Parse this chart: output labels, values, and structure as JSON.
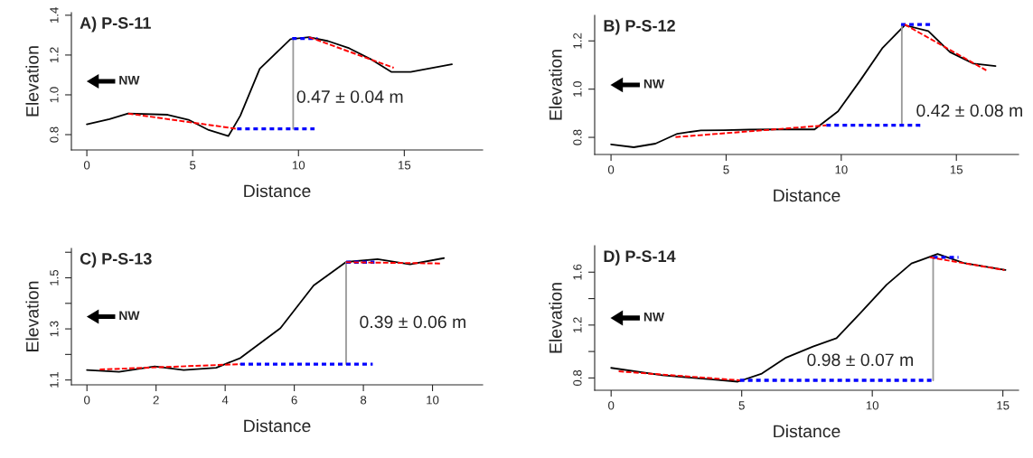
{
  "chart_data": [
    {
      "type": "line",
      "title": "A) P-S-11",
      "xlabel": "Distance",
      "ylabel": "Elevation",
      "xlim": [
        -0.73,
        18.7
      ],
      "ylim": [
        0.723,
        1.413
      ],
      "xticks": [
        0,
        5,
        10,
        15
      ],
      "yticks": [
        0.8,
        {
          "value": 1.0,
          "label": "1.0"
        },
        1.2,
        1.4
      ],
      "series": [
        {
          "color": "#000000",
          "line_style": "solid",
          "x": [
            0,
            1.07,
            1.95,
            3.82,
            4.8,
            5.76,
            6.69,
            7.25,
            8.17,
            9.62,
            10.5,
            11.4,
            12.4,
            13.4,
            14.4,
            15.3,
            17.25
          ],
          "values": [
            0.852,
            0.878,
            0.906,
            0.9,
            0.875,
            0.823,
            0.793,
            0.895,
            1.131,
            1.28,
            1.29,
            1.27,
            1.234,
            1.18,
            1.115,
            1.115,
            1.154
          ]
        },
        {
          "color": "#ff0000",
          "line_style": "dashed",
          "x": [
            1.95,
            7.1
          ],
          "values": [
            0.906,
            0.829
          ]
        },
        {
          "color": "#ff0000",
          "line_style": "dashed",
          "x": [
            10.5,
            14.5
          ],
          "values": [
            1.29,
            1.136
          ]
        },
        {
          "color": "#0000ff",
          "line_style": "dotted",
          "x": [
            7.1,
            10.76
          ],
          "values": [
            0.829,
            0.829
          ]
        },
        {
          "color": "#0000ff",
          "line_style": "dotted",
          "x": [
            9.7,
            10.9
          ],
          "values": [
            1.283,
            1.283
          ]
        },
        {
          "color": "#999999",
          "line_style": "solid",
          "x": [
            9.75,
            9.75
          ],
          "values": [
            0.829,
            1.283
          ]
        }
      ],
      "annotations": [
        "0.47 ± 0.04 m",
        "NW"
      ]
    },
    {
      "type": "line",
      "title": "B) P-S-12",
      "xlabel": "Distance",
      "ylabel": "Elevation",
      "xlim": [
        -0.71,
        17.7
      ],
      "ylim": [
        0.729,
        1.306
      ],
      "xticks": [
        0,
        5,
        10,
        15
      ],
      "yticks": [
        0.8,
        {
          "value": 1.0,
          "label": "1.0"
        },
        1.2
      ],
      "series": [
        {
          "color": "#000000",
          "line_style": "solid",
          "x": [
            0,
            0.99,
            1.93,
            2.88,
            3.9,
            4.9,
            6.0,
            7.17,
            8.84,
            9.86,
            10.8,
            11.8,
            12.76,
            13.78,
            14.72,
            15.74,
            16.7
          ],
          "values": [
            0.771,
            0.759,
            0.774,
            0.815,
            0.829,
            0.83,
            0.832,
            0.833,
            0.833,
            0.908,
            1.033,
            1.172,
            1.265,
            1.241,
            1.154,
            1.106,
            1.096
          ]
        },
        {
          "color": "#ff0000",
          "line_style": "dashed",
          "x": [
            2.8,
            9.35
          ],
          "values": [
            0.801,
            0.85
          ]
        },
        {
          "color": "#ff0000",
          "line_style": "dashed",
          "x": [
            12.76,
            16.3
          ],
          "values": [
            1.268,
            1.078
          ]
        },
        {
          "color": "#0000ff",
          "line_style": "dotted",
          "x": [
            9.35,
            13.45
          ],
          "values": [
            0.85,
            0.85
          ]
        },
        {
          "color": "#0000ff",
          "line_style": "dotted",
          "x": [
            12.6,
            13.9
          ],
          "values": [
            1.268,
            1.268
          ]
        },
        {
          "color": "#999999",
          "line_style": "solid",
          "x": [
            12.63,
            12.63
          ],
          "values": [
            0.85,
            1.268
          ]
        }
      ],
      "annotations": [
        "0.42 ± 0.08 m",
        "NW"
      ]
    },
    {
      "type": "line",
      "title": "C) P-S-13",
      "xlabel": "Distance",
      "ylabel": "Elevation",
      "xlim": [
        -0.45,
        11.45
      ],
      "ylim": [
        1.081,
        1.615
      ],
      "xticks": [
        0,
        2,
        4,
        6,
        8,
        10
      ],
      "yticks": [
        1.1,
        {
          "value": 1.2,
          "label": null
        },
        1.3,
        {
          "value": 1.4,
          "label": null
        },
        1.5,
        {
          "value": 1.6,
          "label": null
        }
      ],
      "series": [
        {
          "color": "#000000",
          "line_style": "solid",
          "x": [
            0,
            0.93,
            1.96,
            2.8,
            3.74,
            4.44,
            5.6,
            6.56,
            7.5,
            8.41,
            9.35,
            10.33
          ],
          "values": [
            1.139,
            1.132,
            1.153,
            1.139,
            1.148,
            1.186,
            1.303,
            1.47,
            1.562,
            1.573,
            1.553,
            1.577
          ]
        },
        {
          "color": "#ff0000",
          "line_style": "dashed",
          "x": [
            0.37,
            4.44
          ],
          "values": [
            1.141,
            1.162
          ]
        },
        {
          "color": "#ff0000",
          "line_style": "dashed",
          "x": [
            7.5,
            10.26
          ],
          "values": [
            1.561,
            1.556
          ]
        },
        {
          "color": "#0000ff",
          "line_style": "dotted",
          "x": [
            4.44,
            8.27
          ],
          "values": [
            1.162,
            1.162
          ]
        },
        {
          "color": "#0000ff",
          "line_style": "dotted",
          "x": [
            7.5,
            8.32
          ],
          "values": [
            1.561,
            1.561
          ]
        },
        {
          "color": "#999999",
          "line_style": "solid",
          "x": [
            7.5,
            7.5
          ],
          "values": [
            1.162,
            1.561
          ]
        }
      ],
      "annotations": [
        "0.39 ± 0.06 m",
        "NW"
      ]
    },
    {
      "type": "line",
      "title": "D) P-S-14",
      "xlabel": "Distance",
      "ylabel": "Elevation",
      "xlim": [
        -0.63,
        15.6
      ],
      "ylim": [
        0.707,
        1.8
      ],
      "xticks": [
        0,
        5,
        10,
        15
      ],
      "yticks": [
        0.8,
        {
          "value": 1.0,
          "label": null
        },
        1.2,
        {
          "value": 1.4,
          "label": null
        },
        1.6
      ],
      "series": [
        {
          "color": "#000000",
          "line_style": "solid",
          "x": [
            0,
            1.96,
            4.0,
            4.85,
            5.77,
            6.7,
            7.73,
            8.63,
            9.5,
            10.55,
            11.5,
            12.5,
            13.5,
            15.1
          ],
          "values": [
            0.876,
            0.82,
            0.787,
            0.772,
            0.833,
            0.954,
            1.037,
            1.1,
            1.282,
            1.505,
            1.666,
            1.737,
            1.669,
            1.616
          ]
        },
        {
          "color": "#ff0000",
          "line_style": "dashed",
          "x": [
            0.29,
            4.93
          ],
          "values": [
            0.85,
            0.782
          ]
        },
        {
          "color": "#ff0000",
          "line_style": "dashed",
          "x": [
            12.2,
            15.06
          ],
          "values": [
            1.712,
            1.616
          ]
        },
        {
          "color": "#0000ff",
          "line_style": "dotted",
          "x": [
            4.93,
            12.33
          ],
          "values": [
            0.782,
            0.782
          ]
        },
        {
          "color": "#0000ff",
          "line_style": "dotted",
          "x": [
            12.33,
            13.3
          ],
          "values": [
            1.712,
            1.712
          ]
        },
        {
          "color": "#999999",
          "line_style": "solid",
          "x": [
            12.33,
            12.33
          ],
          "values": [
            0.782,
            1.712
          ]
        }
      ],
      "annotations": [
        "0.98 ± 0.07 m",
        "NW"
      ]
    }
  ]
}
